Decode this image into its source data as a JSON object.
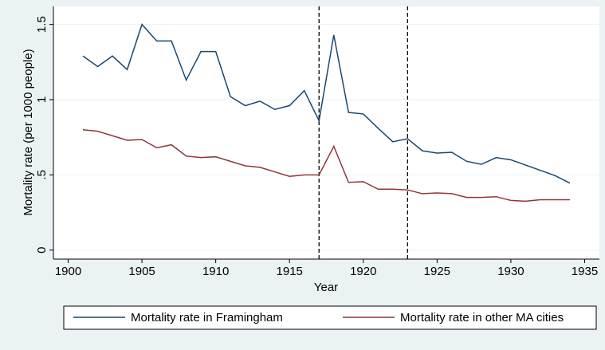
{
  "chart_data": {
    "type": "line",
    "x": [
      1901,
      1902,
      1903,
      1904,
      1905,
      1906,
      1907,
      1908,
      1909,
      1910,
      1911,
      1912,
      1913,
      1914,
      1915,
      1916,
      1917,
      1918,
      1919,
      1920,
      1921,
      1922,
      1923,
      1924,
      1925,
      1926,
      1927,
      1928,
      1929,
      1930,
      1931,
      1932,
      1933,
      1934
    ],
    "series": [
      {
        "name": "Mortality rate in Framingham",
        "color": "#1a476f",
        "values": [
          1.29,
          1.22,
          1.29,
          1.2,
          1.5,
          1.39,
          1.39,
          1.13,
          1.32,
          1.32,
          1.02,
          0.96,
          0.99,
          0.935,
          0.96,
          1.06,
          0.86,
          1.43,
          0.915,
          0.905,
          0.81,
          0.72,
          0.74,
          0.66,
          0.645,
          0.65,
          0.59,
          0.57,
          0.615,
          0.6,
          0.565,
          0.53,
          0.495,
          0.445
        ]
      },
      {
        "name": "Mortality rate in other MA cities",
        "color": "#90353b",
        "values": [
          0.8,
          0.79,
          0.76,
          0.73,
          0.735,
          0.68,
          0.7,
          0.625,
          0.615,
          0.62,
          0.59,
          0.56,
          0.55,
          0.52,
          0.49,
          0.5,
          0.5,
          0.69,
          0.45,
          0.455,
          0.405,
          0.405,
          0.4,
          0.375,
          0.38,
          0.375,
          0.35,
          0.35,
          0.355,
          0.33,
          0.325,
          0.335,
          0.335,
          0.335
        ]
      }
    ],
    "xlabel": "Year",
    "ylabel": "Mortality rate (per 1000 people)",
    "xlim": [
      1899,
      1936
    ],
    "xticks": [
      1900,
      1905,
      1910,
      1915,
      1920,
      1925,
      1930,
      1935
    ],
    "ylim": [
      -0.06,
      1.62
    ],
    "yticks": [
      0,
      {
        "value": 0.5,
        "label": ".5"
      },
      1,
      1.5
    ],
    "vlines": [
      1917,
      1923
    ],
    "grid": true
  }
}
